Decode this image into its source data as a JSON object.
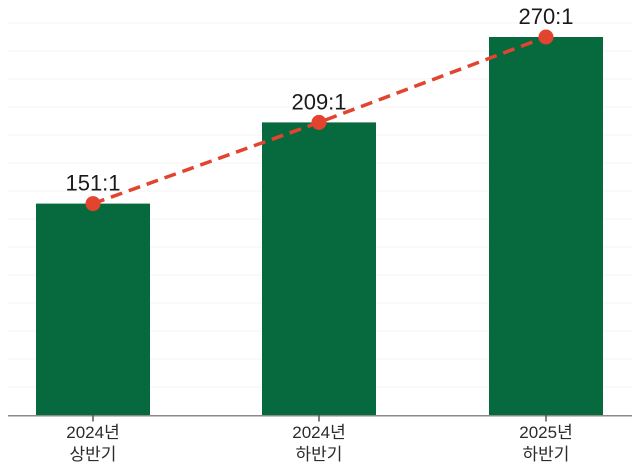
{
  "chart_data": {
    "type": "bar",
    "categories": [
      {
        "line1": "2024년",
        "line2": "상반기"
      },
      {
        "line1": "2024년",
        "line2": "하반기"
      },
      {
        "line1": "2025년",
        "line2": "하반기"
      }
    ],
    "values": [
      151,
      209,
      270
    ],
    "value_labels": [
      "151:1",
      "209:1",
      "270:1"
    ],
    "overlay_line": {
      "type": "line",
      "style": "dashed",
      "markers": "circle",
      "values": [
        151,
        209,
        270
      ]
    },
    "ylim": [
      0,
      300
    ],
    "grid": "faint-horizontal",
    "legend": "none",
    "colors": {
      "bar": "#076a3e",
      "line": "#e2442f",
      "marker": "#e2442f",
      "axis": "#8a8a8a",
      "tick": "#555555",
      "value_label": "#1a1a1a",
      "category_label": "#2b2b2b",
      "gridline": "#f6f6f6",
      "background": "#ffffff"
    }
  }
}
